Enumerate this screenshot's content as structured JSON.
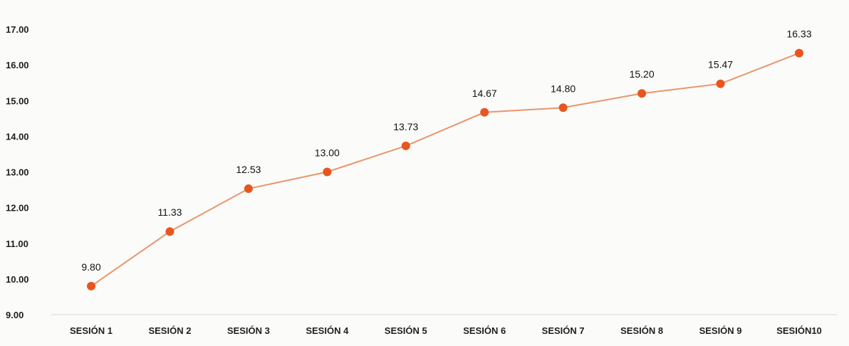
{
  "chart_data": {
    "type": "line",
    "title": "",
    "xlabel": "",
    "ylabel": "",
    "categories": [
      "SESIÓN 1",
      "SESIÓN 2",
      "SESIÓN 3",
      "SESIÓN 4",
      "SESIÓN 5",
      "SESIÓN 6",
      "SESIÓN 7",
      "SESIÓN 8",
      "SESIÓN 9",
      "SESIÓN10"
    ],
    "series": [
      {
        "values": [
          9.8,
          11.33,
          12.53,
          13.0,
          13.73,
          14.67,
          14.8,
          15.2,
          15.47,
          16.33
        ],
        "value_labels": [
          "9.80",
          "11.33",
          "12.53",
          "13.00",
          "13.73",
          "14.67",
          "14.80",
          "15.20",
          "15.47",
          "16.33"
        ],
        "color": "#e8551f"
      }
    ],
    "ylim": [
      9,
      17
    ],
    "y_ticks": [
      "9.00",
      "10.00",
      "11.00",
      "12.00",
      "13.00",
      "14.00",
      "15.00",
      "16.00",
      "17.00"
    ],
    "grid": false,
    "legend": "none"
  },
  "colors": {
    "marker": "#e8551f",
    "line": "#e9956a",
    "axis_line": "#d9d9d9",
    "text": "#1f1f1f"
  }
}
